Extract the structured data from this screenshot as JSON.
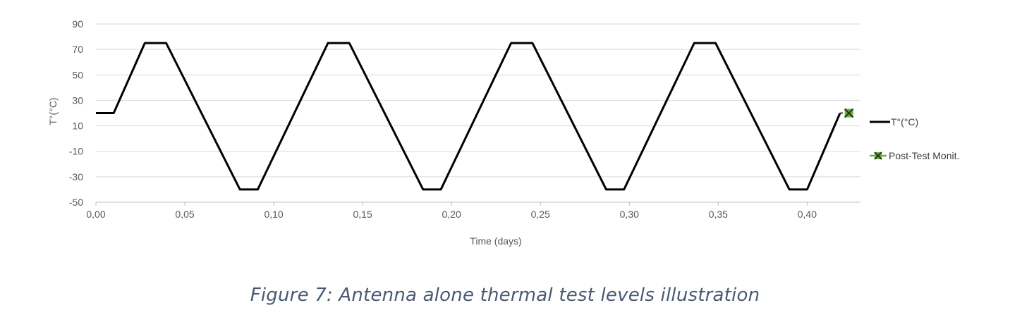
{
  "chart_data": {
    "type": "line",
    "title": "",
    "xlabel": "Time (days)",
    "ylabel": "T°(°C)",
    "xlim": [
      0,
      0.43
    ],
    "ylim": [
      -50,
      90
    ],
    "x_ticks": [
      "0,00",
      "0,05",
      "0,10",
      "0,15",
      "0,20",
      "0,25",
      "0,30",
      "0,35",
      "0,40"
    ],
    "y_ticks": [
      "90",
      "70",
      "50",
      "30",
      "10",
      "-10",
      "-30",
      "-50"
    ],
    "grid": "horizontal",
    "legend_position": "right",
    "series": [
      {
        "name": "T°(°C)",
        "color": "#000000",
        "x": [
          0.0,
          0.01,
          0.0275,
          0.0395,
          0.081,
          0.091,
          0.1305,
          0.1425,
          0.184,
          0.194,
          0.2335,
          0.2455,
          0.287,
          0.297,
          0.3365,
          0.3485,
          0.39,
          0.4,
          0.4185
        ],
        "y": [
          20,
          20,
          75,
          75,
          -40,
          -40,
          75,
          75,
          -40,
          -40,
          75,
          75,
          -40,
          -40,
          75,
          75,
          -40,
          -40,
          20
        ]
      },
      {
        "name": "Post-Test Monit.",
        "color": "#70ad47",
        "marker": "x",
        "x": [
          0.4185,
          0.4235
        ],
        "y": [
          20,
          20
        ]
      }
    ]
  },
  "caption": "Figure 7: Antenna alone thermal test levels illustration"
}
